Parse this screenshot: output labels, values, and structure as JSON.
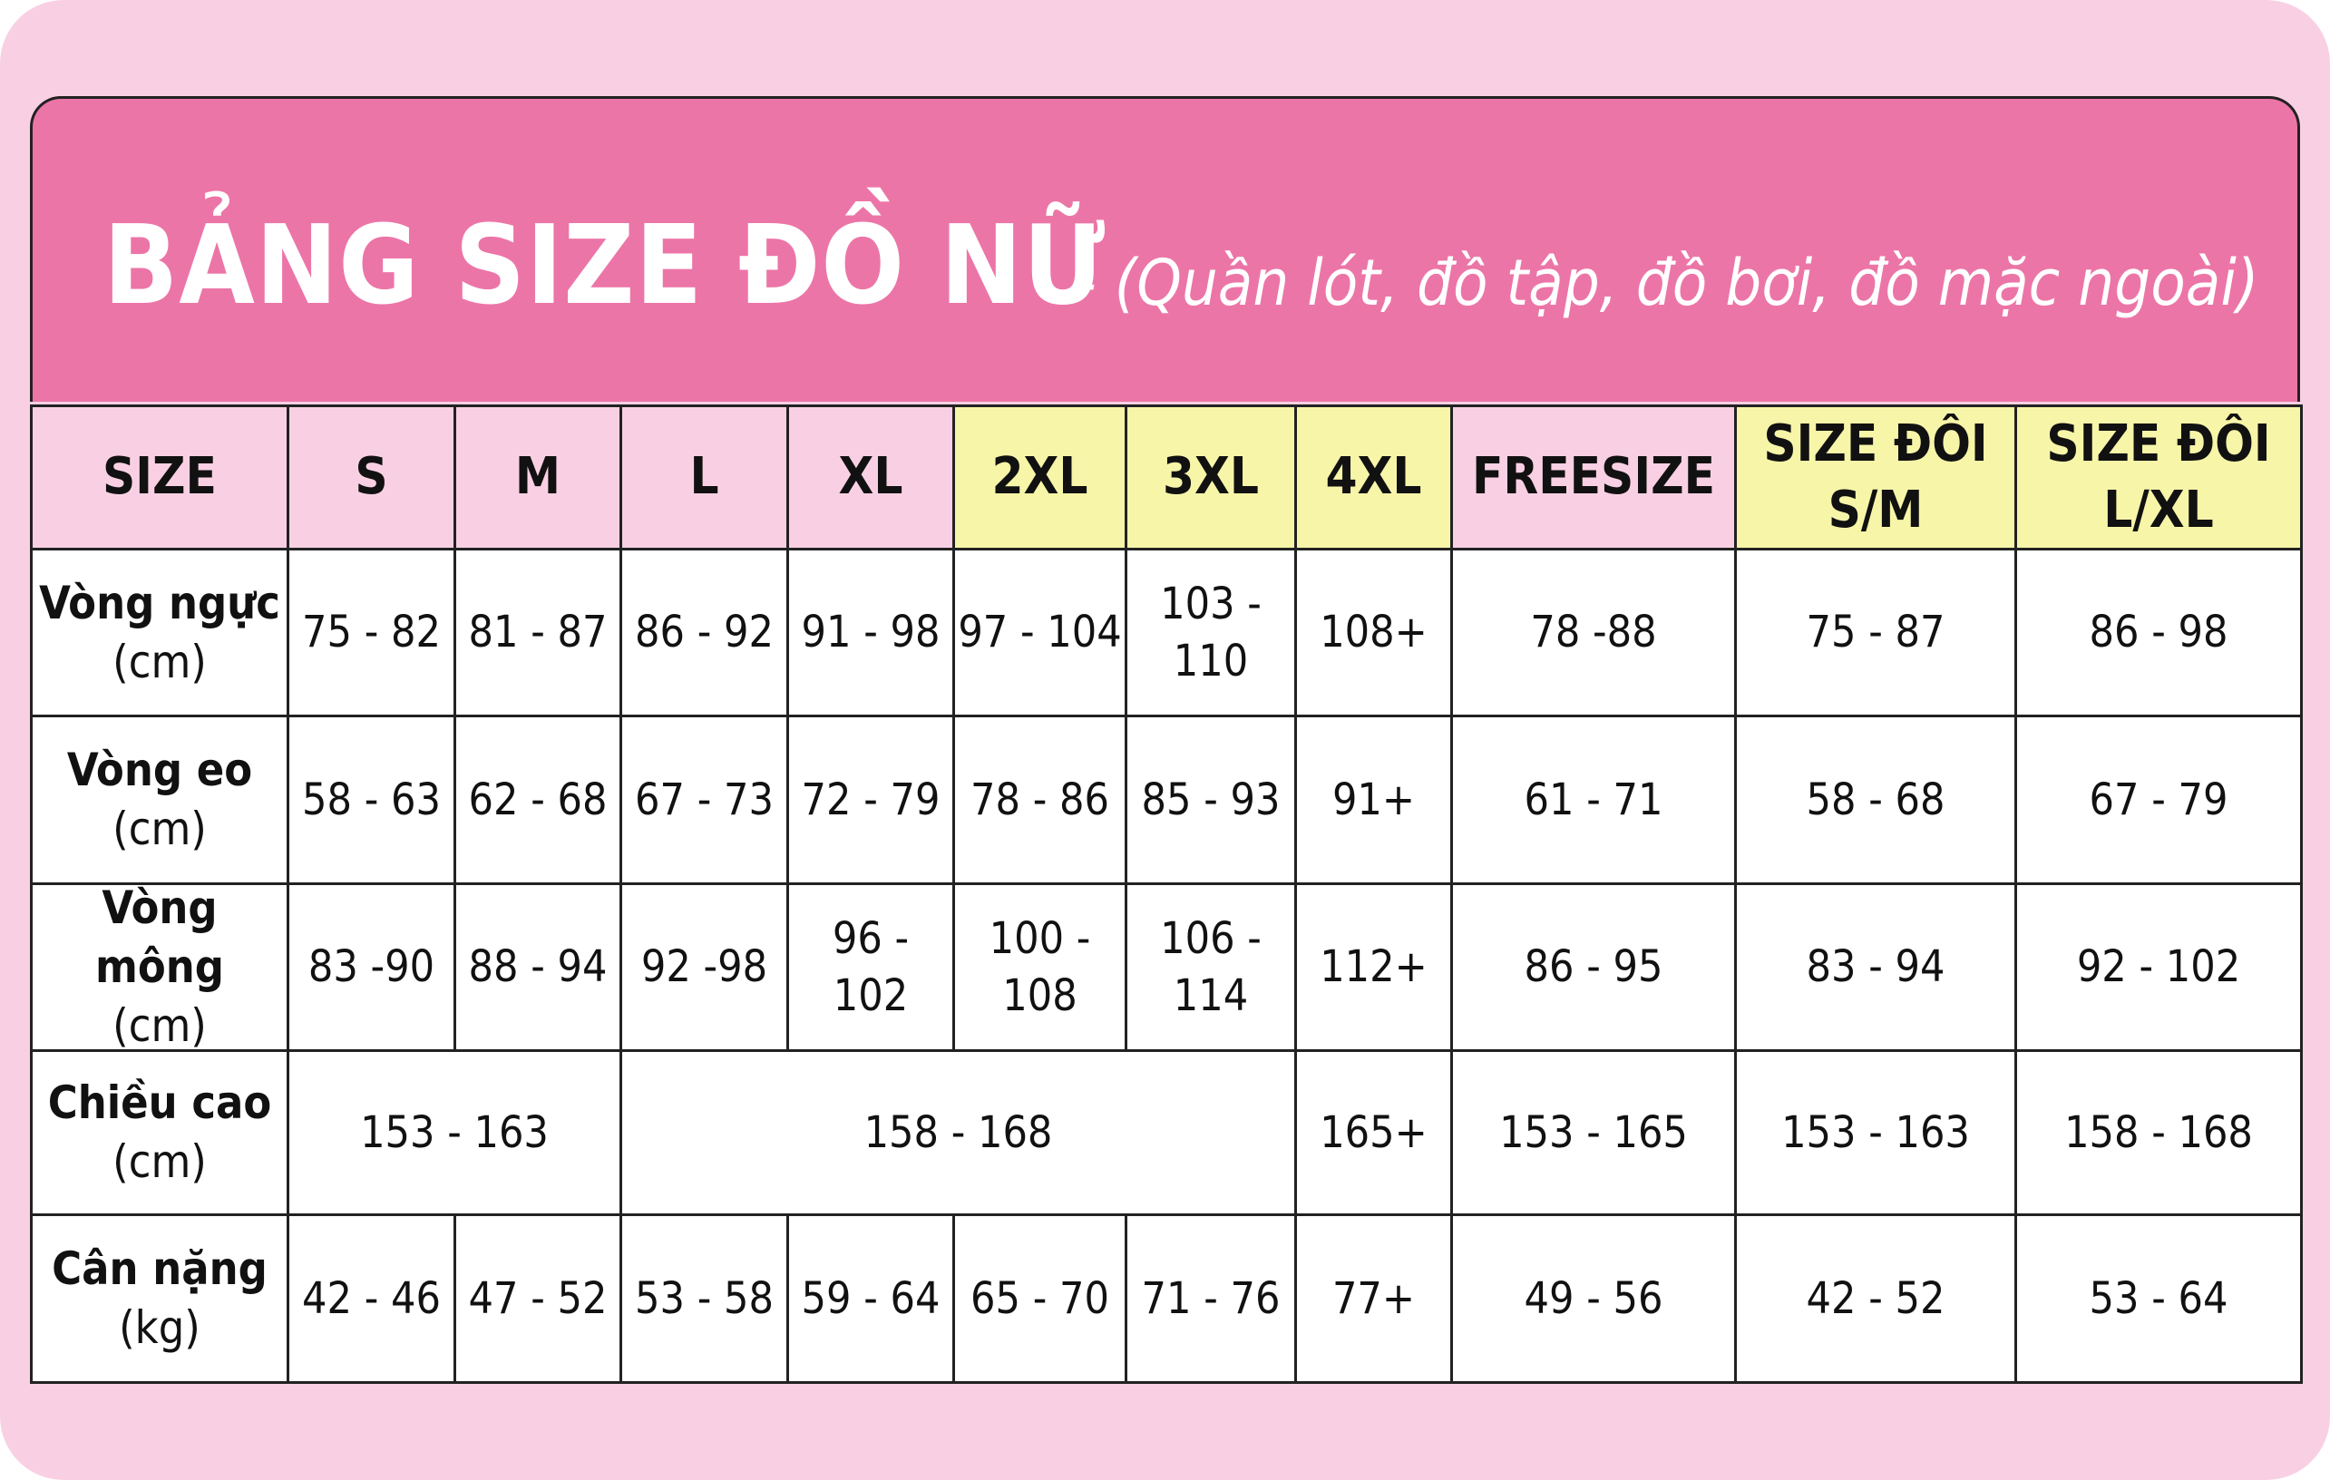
{
  "title": "BẢNG SIZE ĐỒ NỮ",
  "subtitle": "- (Quần lót, đồ tập, đồ bơi, đồ mặc ngoài)",
  "colors": {
    "background": "#f9d0e3",
    "title_bar": "#ec75a7",
    "header_pink": "#f9d0e3",
    "header_yellow": "#f7f5a8"
  },
  "headers": [
    {
      "label": "SIZE",
      "color": "pink"
    },
    {
      "label": "S",
      "color": "pink"
    },
    {
      "label": "M",
      "color": "pink"
    },
    {
      "label": "L",
      "color": "pink"
    },
    {
      "label": "XL",
      "color": "pink"
    },
    {
      "label": "2XL",
      "color": "yellow"
    },
    {
      "label": "3XL",
      "color": "yellow"
    },
    {
      "label": "4XL",
      "color": "yellow"
    },
    {
      "label": "FREESIZE",
      "color": "pink"
    },
    {
      "label": "SIZE ĐÔI S/M",
      "color": "yellow"
    },
    {
      "label": "SIZE ĐÔI L/XL",
      "color": "yellow"
    }
  ],
  "rows": [
    {
      "label": "Vòng ngực",
      "unit": "(cm)",
      "cells": [
        {
          "v": "75 - 82"
        },
        {
          "v": "81 - 87"
        },
        {
          "v": "86 - 92"
        },
        {
          "v": "91 - 98"
        },
        {
          "v": "97 - 104"
        },
        {
          "v": "103 - 110"
        },
        {
          "v": "108+"
        },
        {
          "v": "78 -88"
        },
        {
          "v": "75 - 87"
        },
        {
          "v": "86 - 98"
        }
      ]
    },
    {
      "label": "Vòng eo",
      "unit": "(cm)",
      "cells": [
        {
          "v": "58 - 63"
        },
        {
          "v": "62 - 68"
        },
        {
          "v": "67 - 73"
        },
        {
          "v": "72 - 79"
        },
        {
          "v": "78 - 86"
        },
        {
          "v": "85 - 93"
        },
        {
          "v": "91+"
        },
        {
          "v": "61 - 71"
        },
        {
          "v": "58 - 68"
        },
        {
          "v": "67 - 79"
        }
      ]
    },
    {
      "label": "Vòng mông",
      "unit": "(cm)",
      "cells": [
        {
          "v": "83 -90"
        },
        {
          "v": "88 - 94"
        },
        {
          "v": "92 -98"
        },
        {
          "v": "96 - 102"
        },
        {
          "v": "100 - 108"
        },
        {
          "v": "106 - 114"
        },
        {
          "v": "112+"
        },
        {
          "v": "86 - 95"
        },
        {
          "v": "83 - 94"
        },
        {
          "v": "92 - 102"
        }
      ]
    },
    {
      "label": "Chiều cao",
      "unit": "(cm)",
      "cells": [
        {
          "v": "153 - 163",
          "span": 2
        },
        {
          "v": "158 - 168",
          "span": 4
        },
        {
          "v": "165+"
        },
        {
          "v": "153 - 165"
        },
        {
          "v": "153 - 163"
        },
        {
          "v": "158 - 168"
        }
      ]
    },
    {
      "label": "Cân nặng",
      "unit": "(kg)",
      "cells": [
        {
          "v": "42 - 46"
        },
        {
          "v": "47 - 52"
        },
        {
          "v": "53 - 58"
        },
        {
          "v": "59 - 64"
        },
        {
          "v": "65 - 70"
        },
        {
          "v": "71 - 76"
        },
        {
          "v": "77+"
        },
        {
          "v": "49 - 56"
        },
        {
          "v": "42 - 52"
        },
        {
          "v": "53 - 64"
        }
      ]
    }
  ]
}
